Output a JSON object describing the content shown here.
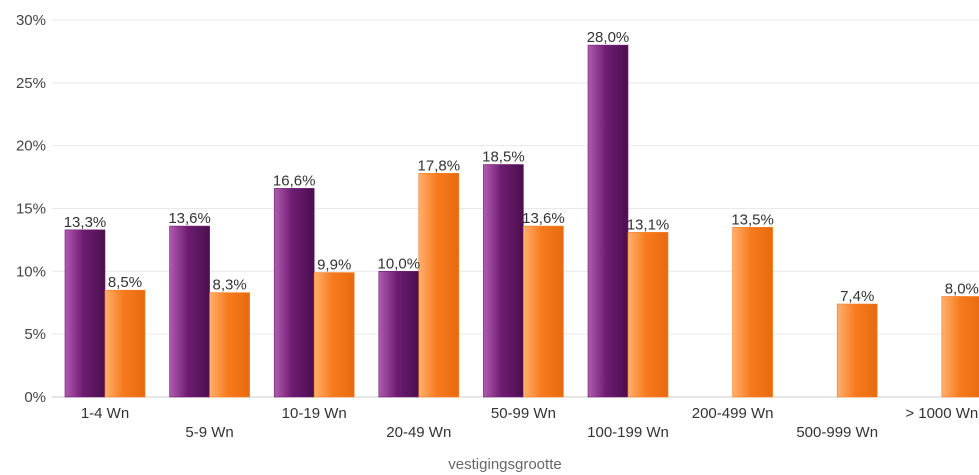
{
  "chart_data": {
    "type": "bar",
    "title": "",
    "xlabel": "vestigingsgrootte",
    "ylabel": "",
    "ylim": [
      0,
      30
    ],
    "yticks": [
      0,
      5,
      10,
      15,
      20,
      25,
      30
    ],
    "ytick_labels": [
      "0%",
      "5%",
      "10%",
      "15%",
      "20%",
      "25%",
      "30%"
    ],
    "categories": [
      "1-4 Wn",
      "5-9 Wn",
      "10-19 Wn",
      "20-49 Wn",
      "50-99 Wn",
      "100-199 Wn",
      "200-499 Wn",
      "500-999 Wn",
      "> 1000 Wn"
    ],
    "series": [
      {
        "color": "#6b1a6e",
        "values": [
          13.3,
          13.6,
          16.6,
          10.0,
          18.5,
          28.0,
          null,
          null,
          null
        ],
        "labels": [
          "13,3%",
          "13,6%",
          "16,6%",
          "10,0%",
          "18,5%",
          "28,0%",
          "",
          "",
          ""
        ]
      },
      {
        "color": "#f77b1d",
        "values": [
          8.5,
          8.3,
          9.9,
          17.8,
          13.6,
          13.1,
          13.5,
          7.4,
          8.0
        ],
        "labels": [
          "8,5%",
          "8,3%",
          "9,9%",
          "17,8%",
          "13,6%",
          "13,1%",
          "13,5%",
          "7,4%",
          "8,0%"
        ]
      }
    ],
    "grid": true,
    "legend": "none"
  }
}
